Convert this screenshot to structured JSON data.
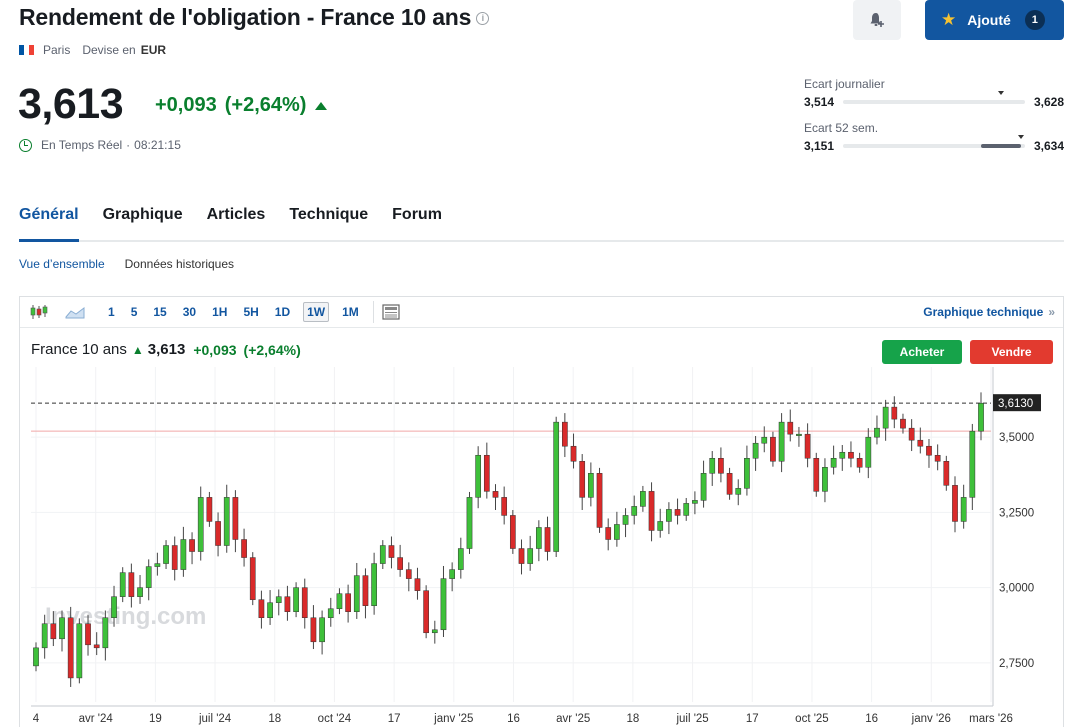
{
  "header": {
    "title": "Rendement de l'obligation - France 10 ans",
    "info_glyph": "i",
    "exchange": "Paris",
    "currency_label": "Devise en",
    "currency": "EUR",
    "flag_colors": [
      "#0055a4",
      "#ffffff",
      "#ef4135"
    ]
  },
  "actions": {
    "bell_icon": "bell-plus-icon",
    "added_label": "Ajouté",
    "added_count": "1",
    "star_glyph": "★"
  },
  "quote": {
    "price": "3,613",
    "change": "+0,093",
    "change_pct": "(+2,64%)",
    "realtime_label": "En Temps Réel",
    "separator": "·",
    "time": "08:21:15"
  },
  "ranges": {
    "daily": {
      "label": "Ecart journalier",
      "low": "3,514",
      "high": "3,628",
      "current_fraction": 0.87
    },
    "week52": {
      "label": "Ecart 52 sem.",
      "low": "3,151",
      "high": "3,634",
      "current_fraction": 0.98,
      "fill_from": 0.76
    }
  },
  "tabs": [
    "Général",
    "Graphique",
    "Articles",
    "Technique",
    "Forum"
  ],
  "active_tab": 0,
  "subtabs": [
    "Vue d’ensemble",
    "Données historiques"
  ],
  "active_subtab": 0,
  "toolbar": {
    "timeframes": [
      "1",
      "5",
      "15",
      "30",
      "1H",
      "5H",
      "1D",
      "1W",
      "1M"
    ],
    "active_timeframe": "1W",
    "tech_link": "Graphique technique",
    "chevron": "»"
  },
  "legend": {
    "name": "France 10 ans",
    "arrow": "▲",
    "price": "3,613",
    "change": "+0,093",
    "change_pct": "(+2,64%)"
  },
  "trade": {
    "buy": "Acheter",
    "sell": "Vendre"
  },
  "colors": {
    "accent": "#1256a0",
    "up": "#0a7f2e",
    "buy": "#16a34a",
    "sell": "#e23a2f",
    "candle_up": "#3ec03a",
    "candle_down": "#d92a2a"
  },
  "chart_data": {
    "type": "candlestick",
    "title": "France 10 ans",
    "interval": "1W",
    "ylim": [
      2.62,
      3.7
    ],
    "yticks": [
      2.75,
      3.0,
      3.25,
      3.5
    ],
    "ytick_labels": [
      "2,7500",
      "3,0000",
      "3,2500",
      "3,5000"
    ],
    "last_price": 3.613,
    "last_price_label": "3,6130",
    "reference_line": 3.52,
    "x_labels": [
      "4",
      "avr '24",
      "19",
      "juil '24",
      "18",
      "oct '24",
      "17",
      "janv '25",
      "16",
      "avr '25",
      "18",
      "juil '25",
      "17",
      "oct '25",
      "16",
      "janv '26",
      "mars '26"
    ],
    "watermark": "Investing.com",
    "closes": [
      2.8,
      2.88,
      2.83,
      2.9,
      2.7,
      2.88,
      2.81,
      2.8,
      2.9,
      2.97,
      3.05,
      2.97,
      3.0,
      3.07,
      3.08,
      3.14,
      3.06,
      3.16,
      3.12,
      3.3,
      3.22,
      3.14,
      3.3,
      3.16,
      3.1,
      2.96,
      2.9,
      2.95,
      2.97,
      2.92,
      3.0,
      2.9,
      2.82,
      2.9,
      2.93,
      2.98,
      2.92,
      3.04,
      2.94,
      3.08,
      3.14,
      3.1,
      3.06,
      3.03,
      2.99,
      2.85,
      2.86,
      3.03,
      3.06,
      3.13,
      3.3,
      3.44,
      3.32,
      3.3,
      3.24,
      3.13,
      3.08,
      3.13,
      3.2,
      3.12,
      3.55,
      3.47,
      3.42,
      3.3,
      3.38,
      3.2,
      3.16,
      3.21,
      3.24,
      3.27,
      3.32,
      3.19,
      3.22,
      3.26,
      3.24,
      3.28,
      3.29,
      3.38,
      3.43,
      3.38,
      3.31,
      3.33,
      3.43,
      3.48,
      3.5,
      3.42,
      3.55,
      3.51,
      3.51,
      3.43,
      3.32,
      3.4,
      3.43,
      3.45,
      3.43,
      3.4,
      3.5,
      3.53,
      3.6,
      3.56,
      3.53,
      3.49,
      3.47,
      3.44,
      3.42,
      3.34,
      3.22,
      3.3,
      3.52,
      3.613
    ]
  }
}
